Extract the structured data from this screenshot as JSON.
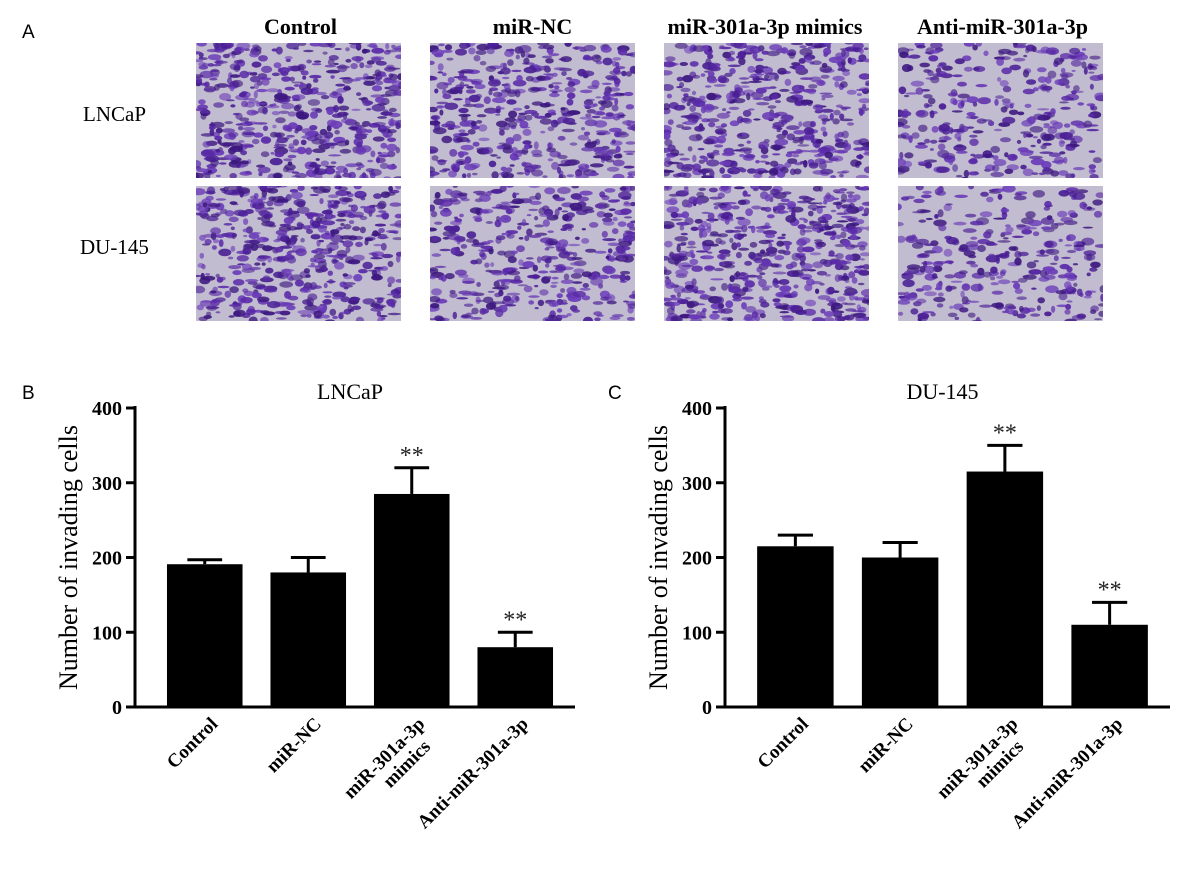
{
  "panel_labels": {
    "a": "A",
    "b": "B",
    "c": "C"
  },
  "micrographs": {
    "columns": [
      "Control",
      "miR-NC",
      "miR-301a-3p mimics",
      "Anti-miR-301a-3p"
    ],
    "rows": [
      "LNCaP",
      "DU-145"
    ],
    "stain_color": "#5a2aa8",
    "background_color": "#c2bcd0",
    "relative_density": [
      [
        0.62,
        0.52,
        0.6,
        0.3
      ],
      [
        0.6,
        0.45,
        0.62,
        0.28
      ]
    ]
  },
  "chart_data": [
    {
      "type": "bar",
      "title": "LNCaP",
      "categories": [
        "Control",
        "miR-NC",
        "miR-301a-3p mimics",
        "Anti-miR-301a-3p"
      ],
      "values": [
        191,
        180,
        285,
        80
      ],
      "errors": [
        6,
        20,
        35,
        20
      ],
      "annotations": [
        "",
        "",
        "**",
        "**"
      ],
      "ylabel": "Number of invading cells",
      "ylim": [
        0,
        400
      ],
      "yticks": [
        0,
        100,
        200,
        300,
        400
      ],
      "bar_color": "#000000"
    },
    {
      "type": "bar",
      "title": "DU-145",
      "categories": [
        "Control",
        "miR-NC",
        "miR-301a-3p mimics",
        "Anti-miR-301a-3p"
      ],
      "values": [
        215,
        200,
        315,
        110
      ],
      "errors": [
        15,
        20,
        35,
        30
      ],
      "annotations": [
        "",
        "",
        "**",
        "**"
      ],
      "ylabel": "Number of invading cells",
      "ylim": [
        0,
        400
      ],
      "yticks": [
        0,
        100,
        200,
        300,
        400
      ],
      "bar_color": "#000000"
    }
  ]
}
